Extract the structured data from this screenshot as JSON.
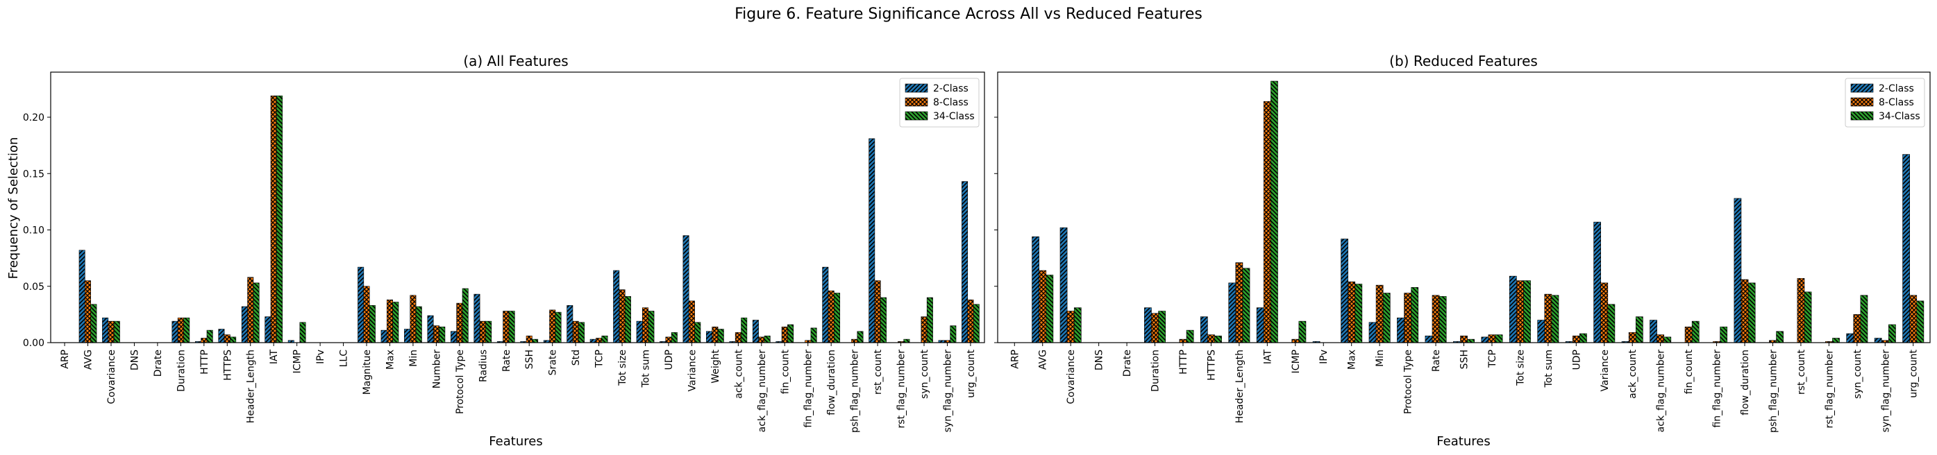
{
  "figure": {
    "suptitle": "Figure 6. Feature Significance Across All vs Reduced Features"
  },
  "legend_series": [
    "2-Class",
    "8-Class",
    "34-Class"
  ],
  "colors": {
    "2-Class": "#1f77b4",
    "8-Class": "#ff7f0e",
    "34-Class": "#2ca02c"
  },
  "hatches": {
    "2-Class": "diagonal",
    "8-Class": "crosshatch",
    "34-Class": "backdiagonal"
  },
  "chart_data": [
    {
      "type": "bar",
      "title": "(a) All Features",
      "xlabel": "Features",
      "ylabel": "Frequency of Selection",
      "ylim": [
        0,
        0.24
      ],
      "yticks": [
        "0.00",
        "0.05",
        "0.10",
        "0.15",
        "0.20"
      ],
      "legend_position": "top-right",
      "categories": [
        "ARP",
        "AVG",
        "Covariance",
        "DNS",
        "Drate",
        "Duration",
        "HTTP",
        "HTTPS",
        "Header_Length",
        "IAT",
        "ICMP",
        "IPv",
        "LLC",
        "Magnitue",
        "Max",
        "Min",
        "Number",
        "Protocol Type",
        "Radius",
        "Rate",
        "SSH",
        "Srate",
        "Std",
        "TCP",
        "Tot size",
        "Tot sum",
        "UDP",
        "Variance",
        "Weight",
        "ack_count",
        "ack_flag_number",
        "fin_count",
        "fin_flag_number",
        "flow_duration",
        "psh_flag_number",
        "rst_count",
        "rst_flag_number",
        "syn_count",
        "syn_flag_number",
        "urg_count"
      ],
      "series": [
        {
          "name": "2-Class",
          "values": [
            0,
            0.082,
            0.022,
            0,
            0,
            0.019,
            0.001,
            0.012,
            0.032,
            0.023,
            0.002,
            0,
            0,
            0.067,
            0.011,
            0.012,
            0.024,
            0.01,
            0.043,
            0.001,
            0.001,
            0.002,
            0.033,
            0.003,
            0.064,
            0.019,
            0.001,
            0.095,
            0.01,
            0.001,
            0.02,
            0.001,
            0,
            0.067,
            0,
            0.181,
            0,
            0,
            0.002,
            0.143
          ]
        },
        {
          "name": "8-Class",
          "values": [
            0,
            0.055,
            0.019,
            0,
            0,
            0.022,
            0.004,
            0.007,
            0.058,
            0.219,
            0,
            0,
            0,
            0.05,
            0.038,
            0.042,
            0.015,
            0.035,
            0.019,
            0.028,
            0.006,
            0.029,
            0.019,
            0.004,
            0.047,
            0.031,
            0.005,
            0.037,
            0.014,
            0.009,
            0.005,
            0.014,
            0.002,
            0.046,
            0.003,
            0.055,
            0.001,
            0.023,
            0.002,
            0.038
          ]
        },
        {
          "name": "34-Class",
          "values": [
            0,
            0.034,
            0.019,
            0,
            0,
            0.022,
            0.011,
            0.005,
            0.053,
            0.219,
            0.018,
            0,
            0,
            0.033,
            0.036,
            0.032,
            0.014,
            0.048,
            0.019,
            0.028,
            0.003,
            0.027,
            0.018,
            0.006,
            0.041,
            0.028,
            0.009,
            0.018,
            0.012,
            0.022,
            0.006,
            0.016,
            0.013,
            0.044,
            0.01,
            0.04,
            0.003,
            0.04,
            0.015,
            0.034
          ]
        }
      ]
    },
    {
      "type": "bar",
      "title": "(b) Reduced Features",
      "xlabel": "Features",
      "ylabel": "",
      "ylim": [
        0,
        0.24
      ],
      "legend_position": "top-right",
      "categories": [
        "ARP",
        "AVG",
        "Covariance",
        "DNS",
        "Drate",
        "Duration",
        "HTTP",
        "HTTPS",
        "Header_Length",
        "IAT",
        "ICMP",
        "IPv",
        "Max",
        "Min",
        "Protocol Type",
        "Rate",
        "SSH",
        "TCP",
        "Tot size",
        "Tot sum",
        "UDP",
        "Variance",
        "ack_count",
        "ack_flag_number",
        "fin_count",
        "fin_flag_number",
        "flow_duration",
        "psh_flag_number",
        "rst_count",
        "rst_flag_number",
        "syn_count",
        "syn_flag_number",
        "urg_count"
      ],
      "series": [
        {
          "name": "2-Class",
          "values": [
            0,
            0.094,
            0.102,
            0,
            0,
            0.031,
            0,
            0.023,
            0.053,
            0.031,
            0,
            0.001,
            0.092,
            0.018,
            0.022,
            0.006,
            0.001,
            0.005,
            0.059,
            0.02,
            0.001,
            0.107,
            0.001,
            0.02,
            0,
            0,
            0.128,
            0,
            0,
            0,
            0.008,
            0.004,
            0.167
          ]
        },
        {
          "name": "8-Class",
          "values": [
            0,
            0.064,
            0.028,
            0,
            0,
            0.026,
            0.003,
            0.007,
            0.071,
            0.214,
            0.003,
            0,
            0.054,
            0.051,
            0.044,
            0.042,
            0.006,
            0.007,
            0.055,
            0.043,
            0.006,
            0.053,
            0.009,
            0.007,
            0.014,
            0.001,
            0.056,
            0.002,
            0.057,
            0.001,
            0.025,
            0.002,
            0.042
          ]
        },
        {
          "name": "34-Class",
          "values": [
            0,
            0.06,
            0.031,
            0,
            0,
            0.028,
            0.011,
            0.006,
            0.066,
            0.232,
            0.019,
            0,
            0.052,
            0.044,
            0.049,
            0.041,
            0.003,
            0.007,
            0.055,
            0.042,
            0.008,
            0.034,
            0.023,
            0.005,
            0.019,
            0.014,
            0.053,
            0.01,
            0.045,
            0.004,
            0.042,
            0.016,
            0.037
          ]
        }
      ]
    }
  ]
}
